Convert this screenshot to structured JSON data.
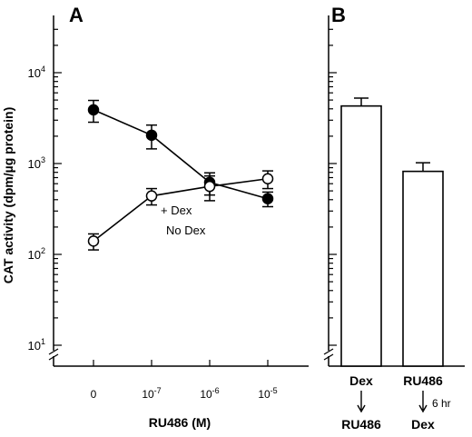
{
  "chart_data": [
    {
      "panel": "A",
      "type": "line",
      "yscale": "log",
      "ylim": [
        10,
        30000
      ],
      "categories": [
        "0",
        "10-7",
        "10-6",
        "10-5"
      ],
      "xlabel": "RU486 (M)",
      "ylabel": "CAT activity (dpm/µg protein)",
      "ytick_values": [
        10,
        100,
        1000,
        10000
      ],
      "ytick_labels": [
        {
          "base": "10",
          "exp": "1"
        },
        {
          "base": "10",
          "exp": "2"
        },
        {
          "base": "10",
          "exp": "3"
        },
        {
          "base": "10",
          "exp": "4"
        }
      ],
      "xtick_labels": [
        {
          "base": "0",
          "exp": ""
        },
        {
          "base": "10",
          "exp": "-7"
        },
        {
          "base": "10",
          "exp": "-6"
        },
        {
          "base": "10",
          "exp": "-5"
        }
      ],
      "series": [
        {
          "name": "+ Dex",
          "marker": "filled-circle",
          "values": [
            3900,
            2050,
            620,
            410
          ],
          "error": [
            1050,
            600,
            170,
            75
          ]
        },
        {
          "name": "No Dex",
          "marker": "open-circle",
          "values": [
            140,
            440,
            560,
            680
          ],
          "error": [
            28,
            90,
            170,
            150
          ]
        }
      ],
      "annotations": [
        "+ Dex",
        "No Dex"
      ]
    },
    {
      "panel": "B",
      "type": "bar",
      "yscale": "log",
      "ylim": [
        10,
        30000
      ],
      "values": [
        4300,
        820
      ],
      "error": [
        950,
        200
      ],
      "categories": [
        {
          "top": "Dex",
          "bottom": "RU486",
          "note": ""
        },
        {
          "top": "RU486",
          "bottom": "Dex",
          "note": "6 hr"
        }
      ]
    }
  ]
}
